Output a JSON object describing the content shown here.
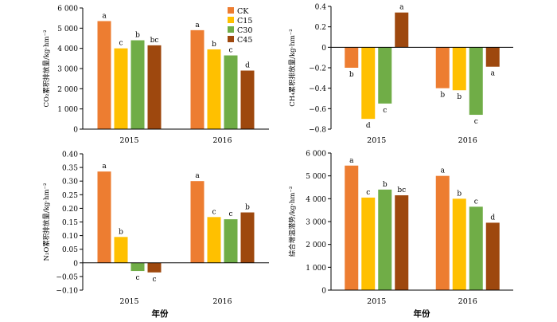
{
  "legend": [
    {
      "label": "CK",
      "color": "#ED7D31"
    },
    {
      "label": "C15",
      "color": "#FFC000"
    },
    {
      "label": "C30",
      "color": "#70AD47"
    },
    {
      "label": "C45",
      "color": "#9E480E"
    }
  ],
  "x_title": "年份",
  "chart_data": [
    {
      "type": "bar",
      "ylabel": "CO₂累积排放量/kg·hm⁻²",
      "categories": [
        "2015",
        "2016"
      ],
      "ylim": [
        0,
        6000
      ],
      "yticks": [
        "0",
        "1 000",
        "2 000",
        "3 000",
        "4 000",
        "5 000",
        "6 000"
      ],
      "ytick_values": [
        0,
        1000,
        2000,
        3000,
        4000,
        5000,
        6000
      ],
      "series": [
        {
          "name": "CK",
          "values": [
            5350,
            4900
          ],
          "labels": [
            "a",
            "a"
          ]
        },
        {
          "name": "C15",
          "values": [
            4000,
            3950
          ],
          "labels": [
            "c",
            "b"
          ]
        },
        {
          "name": "C30",
          "values": [
            4400,
            3650
          ],
          "labels": [
            "b",
            "c"
          ]
        },
        {
          "name": "C45",
          "values": [
            4150,
            2900
          ],
          "labels": [
            "bc",
            "d"
          ]
        }
      ]
    },
    {
      "type": "bar",
      "ylabel": "CH₄累积排放量/kg·hm⁻²",
      "categories": [
        "2015",
        "2016"
      ],
      "ylim": [
        -0.8,
        0.4
      ],
      "yticks": [
        "0.4",
        "0.2",
        "0",
        "−0.2",
        "−0.4",
        "−0.6",
        "−0.8"
      ],
      "ytick_values": [
        0.4,
        0.2,
        0,
        -0.2,
        -0.4,
        -0.6,
        -0.8
      ],
      "series": [
        {
          "name": "CK",
          "values": [
            -0.2,
            -0.4
          ],
          "labels": [
            "b",
            "b"
          ]
        },
        {
          "name": "C15",
          "values": [
            -0.7,
            -0.42
          ],
          "labels": [
            "d",
            "b"
          ]
        },
        {
          "name": "C30",
          "values": [
            -0.55,
            -0.66
          ],
          "labels": [
            "c",
            "c"
          ]
        },
        {
          "name": "C45",
          "values": [
            0.34,
            -0.19
          ],
          "labels": [
            "a",
            "a"
          ]
        }
      ]
    },
    {
      "type": "bar",
      "ylabel": "N₂O累积排放量/kg·hm⁻²",
      "categories": [
        "2015",
        "2016"
      ],
      "ylim": [
        -0.1,
        0.4
      ],
      "yticks": [
        "0.40",
        "0.35",
        "0.30",
        "0.25",
        "0.20",
        "0.15",
        "0.10",
        "0.05",
        "0",
        "−0.05",
        "−0.10"
      ],
      "ytick_values": [
        0.4,
        0.35,
        0.3,
        0.25,
        0.2,
        0.15,
        0.1,
        0.05,
        0,
        -0.05,
        -0.1
      ],
      "series": [
        {
          "name": "CK",
          "values": [
            0.335,
            0.3
          ],
          "labels": [
            "a",
            "a"
          ]
        },
        {
          "name": "C15",
          "values": [
            0.095,
            0.168
          ],
          "labels": [
            "b",
            "c"
          ]
        },
        {
          "name": "C30",
          "values": [
            -0.03,
            0.16
          ],
          "labels": [
            "c",
            "c"
          ]
        },
        {
          "name": "C45",
          "values": [
            -0.035,
            0.185
          ],
          "labels": [
            "c",
            "b"
          ]
        }
      ]
    },
    {
      "type": "bar",
      "ylabel": "综合增温潜势/kg·hm⁻²",
      "categories": [
        "2015",
        "2016"
      ],
      "ylim": [
        0,
        6000
      ],
      "yticks": [
        "0",
        "1 000",
        "2 000",
        "3 000",
        "4 000",
        "5 000",
        "6 000"
      ],
      "ytick_values": [
        0,
        1000,
        2000,
        3000,
        4000,
        5000,
        6000
      ],
      "series": [
        {
          "name": "CK",
          "values": [
            5450,
            5000
          ],
          "labels": [
            "a",
            "a"
          ]
        },
        {
          "name": "C15",
          "values": [
            4050,
            4000
          ],
          "labels": [
            "c",
            "b"
          ]
        },
        {
          "name": "C30",
          "values": [
            4400,
            3650
          ],
          "labels": [
            "b",
            "c"
          ]
        },
        {
          "name": "C45",
          "values": [
            4150,
            2950
          ],
          "labels": [
            "bc",
            "d"
          ]
        }
      ]
    }
  ]
}
